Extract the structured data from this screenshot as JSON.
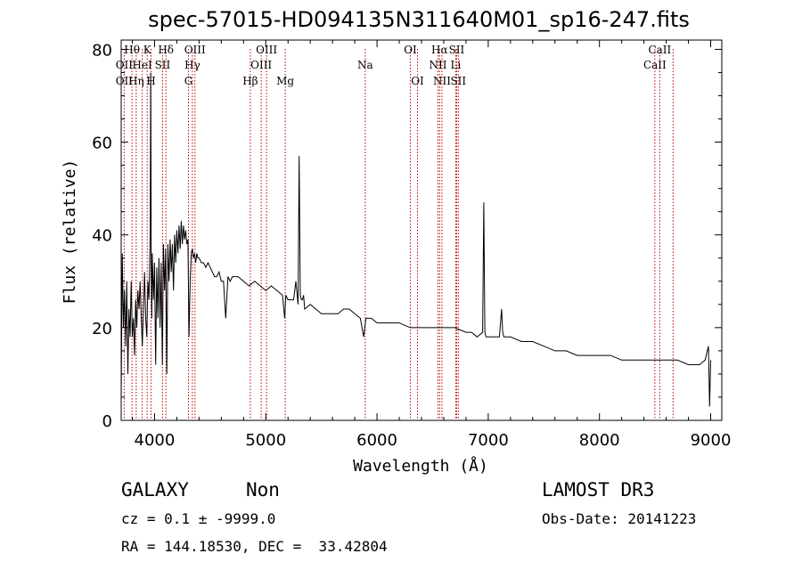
{
  "chart_data": {
    "type": "line",
    "title": "spec-57015-HD094135N311640M01_sp16-247.fits",
    "xlabel": "Wavelength (Å)",
    "ylabel": "Flux (relative)",
    "xlim": [
      3700,
      9100
    ],
    "ylim": [
      0,
      82
    ],
    "xticks": [
      4000,
      5000,
      6000,
      7000,
      8000,
      9000
    ],
    "yticks": [
      0,
      20,
      40,
      60,
      80
    ],
    "series": [
      {
        "name": "flux",
        "x": [
          3700,
          3710,
          3720,
          3730,
          3740,
          3750,
          3760,
          3770,
          3780,
          3790,
          3800,
          3810,
          3820,
          3830,
          3840,
          3850,
          3860,
          3870,
          3880,
          3890,
          3900,
          3910,
          3920,
          3930,
          3940,
          3950,
          3960,
          3965,
          3970,
          3975,
          3980,
          3990,
          4000,
          4010,
          4020,
          4030,
          4040,
          4050,
          4060,
          4070,
          4080,
          4090,
          4100,
          4110,
          4120,
          4130,
          4140,
          4150,
          4160,
          4170,
          4180,
          4190,
          4200,
          4210,
          4220,
          4230,
          4240,
          4250,
          4260,
          4270,
          4280,
          4290,
          4300,
          4310,
          4320,
          4330,
          4340,
          4350,
          4360,
          4370,
          4380,
          4390,
          4400,
          4420,
          4440,
          4460,
          4480,
          4500,
          4520,
          4540,
          4560,
          4580,
          4600,
          4620,
          4640,
          4660,
          4680,
          4700,
          4750,
          4800,
          4850,
          4900,
          4950,
          5000,
          5050,
          5100,
          5150,
          5170,
          5180,
          5200,
          5250,
          5270,
          5290,
          5300,
          5310,
          5320,
          5330,
          5340,
          5350,
          5400,
          5450,
          5500,
          5550,
          5600,
          5650,
          5700,
          5750,
          5800,
          5850,
          5880,
          5900,
          5950,
          6000,
          6100,
          6200,
          6300,
          6400,
          6500,
          6600,
          6700,
          6800,
          6850,
          6900,
          6950,
          6960,
          6970,
          6980,
          7000,
          7050,
          7100,
          7120,
          7130,
          7140,
          7200,
          7300,
          7400,
          7500,
          7600,
          7700,
          7800,
          7900,
          8000,
          8100,
          8200,
          8300,
          8400,
          8500,
          8600,
          8700,
          8800,
          8850,
          8900,
          8950,
          8980,
          8990,
          9000
        ],
        "values": [
          5,
          36,
          20,
          28,
          16,
          30,
          10,
          24,
          18,
          30,
          18,
          22,
          14,
          26,
          20,
          28,
          24,
          30,
          22,
          16,
          24,
          32,
          22,
          18,
          30,
          26,
          40,
          75,
          34,
          22,
          36,
          26,
          34,
          12,
          33,
          22,
          35,
          20,
          34,
          12,
          38,
          28,
          37,
          10,
          38,
          30,
          39,
          32,
          38,
          28,
          40,
          34,
          41,
          36,
          42,
          37,
          43,
          38,
          42,
          39,
          41,
          38,
          39,
          18,
          30,
          36,
          37,
          35,
          36,
          34,
          36,
          35,
          35,
          34,
          34,
          33,
          34,
          33,
          32,
          31,
          31,
          32,
          30,
          30,
          22,
          31,
          30,
          31,
          31,
          30,
          29,
          30,
          29,
          28,
          29,
          28,
          27,
          22,
          27,
          26,
          26,
          30,
          25,
          57,
          27,
          26,
          26,
          27,
          24,
          25,
          24,
          23,
          23,
          23,
          23,
          24,
          24,
          23,
          22,
          18,
          22,
          22,
          21,
          21,
          21,
          20,
          20,
          20,
          20,
          20,
          19,
          19,
          18,
          19,
          47,
          19,
          18,
          18,
          18,
          18,
          24,
          19,
          18,
          18,
          17,
          17,
          16,
          15,
          15,
          14,
          14,
          14,
          14,
          13,
          13,
          13,
          13,
          13,
          13,
          12,
          12,
          12,
          13,
          16,
          3,
          13
        ]
      }
    ],
    "line_markers": [
      {
        "label": "OII",
        "x": 3727,
        "row": 2
      },
      {
        "label": "Hθ",
        "x": 3797,
        "row": 0
      },
      {
        "label": "OII",
        "x": 3727,
        "row": 1
      },
      {
        "label": "Hη",
        "x": 3835,
        "row": 2
      },
      {
        "label": "HeI",
        "x": 3889,
        "row": 1
      },
      {
        "label": "K",
        "x": 3934,
        "row": 0
      },
      {
        "label": "H",
        "x": 3968,
        "row": 2
      },
      {
        "label": "Hδ",
        "x": 4102,
        "row": 0
      },
      {
        "label": "SII",
        "x": 4072,
        "row": 1
      },
      {
        "label": "OIII",
        "x": 4363,
        "row": 0
      },
      {
        "label": "Hγ",
        "x": 4340,
        "row": 1
      },
      {
        "label": "G",
        "x": 4305,
        "row": 2
      },
      {
        "label": "Hβ",
        "x": 4861,
        "row": 2
      },
      {
        "label": "OIII",
        "x": 5007,
        "row": 0
      },
      {
        "label": "OIII",
        "x": 4959,
        "row": 1
      },
      {
        "label": "Mg",
        "x": 5175,
        "row": 2
      },
      {
        "label": "Na",
        "x": 5894,
        "row": 1
      },
      {
        "label": "OI",
        "x": 6300,
        "row": 0
      },
      {
        "label": "OI",
        "x": 6364,
        "row": 2
      },
      {
        "label": "Hα",
        "x": 6563,
        "row": 0
      },
      {
        "label": "SII",
        "x": 6716,
        "row": 0
      },
      {
        "label": "NII",
        "x": 6548,
        "row": 1
      },
      {
        "label": "Li",
        "x": 6708,
        "row": 1
      },
      {
        "label": "NII",
        "x": 6584,
        "row": 2
      },
      {
        "label": "SII",
        "x": 6731,
        "row": 2
      },
      {
        "label": "CaII",
        "x": 8542,
        "row": 0
      },
      {
        "label": "CaII",
        "x": 8498,
        "row": 1
      }
    ],
    "marker_lines": [
      3727,
      3797,
      3835,
      3889,
      3934,
      3968,
      4072,
      4102,
      4305,
      4340,
      4363,
      4861,
      4959,
      5007,
      5175,
      5894,
      6300,
      6364,
      6548,
      6563,
      6584,
      6708,
      6716,
      6731,
      8498,
      8542,
      8662
    ]
  },
  "info": {
    "class": "GALAXY",
    "subclass": "Non",
    "survey": "LAMOST DR3",
    "cz_line": "cz = 0.1 ± -9999.0",
    "obs_date": "Obs-Date: 20141223",
    "coords": "RA = 144.18530, DEC =  33.42804"
  },
  "colors": {
    "marker": "#c00000",
    "trace": "#000000"
  }
}
